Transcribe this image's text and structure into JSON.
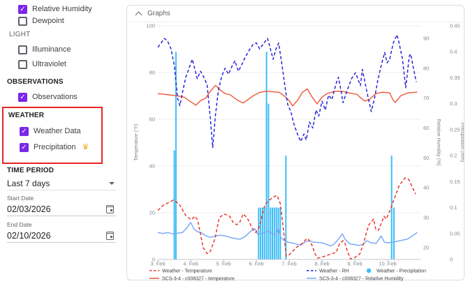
{
  "icons": {
    "check_glyph": "✓",
    "crown_glyph": "♛"
  },
  "sidebar": {
    "sensor_items": [
      {
        "label": "Relative Humidity",
        "checked": true
      },
      {
        "label": "Dewpoint",
        "checked": false
      }
    ],
    "light_heading": "LIGHT",
    "light_items": [
      {
        "label": "Illuminance",
        "checked": false
      },
      {
        "label": "Ultraviolet",
        "checked": false
      }
    ],
    "observations_heading": "OBSERVATIONS",
    "observations_items": [
      {
        "label": "Observations",
        "checked": true
      }
    ],
    "weather_heading": "WEATHER",
    "weather_items": [
      {
        "label": "Weather Data",
        "checked": true
      },
      {
        "label": "Precipitation",
        "checked": true,
        "badge": "crown"
      }
    ],
    "time_period_heading": "TIME PERIOD",
    "time_period_value": "Last 7 days",
    "start_date_label": "Start Date",
    "start_date_value": "02/03/2026",
    "end_date_label": "End Date",
    "end_date_value": "02/10/2026",
    "highlight_color": "#e8251f",
    "checkbox_color": "#7b27e8"
  },
  "graphs_panel": {
    "title": "Graphs"
  },
  "chart_data": {
    "type": "line",
    "x_axis": {
      "domain_days": [
        3,
        11
      ],
      "tick_days": [
        3,
        4,
        5,
        6,
        7,
        8,
        9,
        10
      ],
      "tick_labels": [
        "3. Feb",
        "4. Feb",
        "5. Feb",
        "6. Feb",
        "7. Feb",
        "8. Feb",
        "9. Feb",
        "10. Feb"
      ]
    },
    "y_axes": [
      {
        "id": "temperature",
        "label": "Temperature (°F)",
        "side": "left",
        "domain": [
          0,
          100
        ],
        "ticks": [
          0,
          20,
          40,
          60,
          80,
          100
        ],
        "grid": true
      },
      {
        "id": "humidity",
        "label": "Relative Humidity (%)",
        "side": "right",
        "domain": [
          16,
          94.2
        ],
        "ticks": [
          20,
          30,
          40,
          50,
          60,
          70,
          80,
          90
        ],
        "grid": false
      },
      {
        "id": "precipitation",
        "label": "Precipitation (mm)",
        "side": "right-outer",
        "domain": [
          0,
          0.45
        ],
        "ticks": [
          0,
          0.05,
          0.1,
          0.15,
          0.2,
          0.25,
          0.3,
          0.35,
          0.4,
          0.45
        ],
        "grid": false
      }
    ],
    "series": [
      {
        "name": "Weather - Precipitation",
        "axis": "precipitation",
        "style": "bars",
        "color": "#3dbdf5",
        "points": [
          [
            3.5,
            0.21
          ],
          [
            3.55,
            0.4
          ],
          [
            6.07,
            0.1
          ],
          [
            6.13,
            0.1
          ],
          [
            6.19,
            0.1
          ],
          [
            6.25,
            0.1
          ],
          [
            6.31,
            0.4
          ],
          [
            6.37,
            0.3
          ],
          [
            6.43,
            0.1
          ],
          [
            6.49,
            0.1
          ],
          [
            6.55,
            0.1
          ],
          [
            6.61,
            0.1
          ],
          [
            6.67,
            0.1
          ],
          [
            6.73,
            0.1
          ],
          [
            6.9,
            0.2
          ],
          [
            10.12,
            0.2
          ],
          [
            10.19,
            0.1
          ]
        ]
      },
      {
        "name": "SCS-3-4 - c008327 - Relative Humidity",
        "axis": "humidity",
        "style": "solid",
        "color": "#7baaf7",
        "points": [
          [
            3.0,
            25
          ],
          [
            3.15,
            24.7
          ],
          [
            3.3,
            25
          ],
          [
            3.45,
            24.6
          ],
          [
            3.6,
            24.8
          ],
          [
            3.75,
            25
          ],
          [
            3.9,
            26.8
          ],
          [
            4.0,
            28.4
          ],
          [
            4.1,
            26.2
          ],
          [
            4.2,
            25.3
          ],
          [
            4.3,
            25.1
          ],
          [
            4.45,
            24
          ],
          [
            4.6,
            23.4
          ],
          [
            4.75,
            23.9
          ],
          [
            4.9,
            24.1
          ],
          [
            5.05,
            23.9
          ],
          [
            5.2,
            23.4
          ],
          [
            5.35,
            23
          ],
          [
            5.5,
            22.8
          ],
          [
            5.65,
            23.6
          ],
          [
            5.8,
            25.2
          ],
          [
            5.95,
            26.3
          ],
          [
            6.05,
            24.4
          ],
          [
            6.2,
            24.8
          ],
          [
            6.35,
            25.5
          ],
          [
            6.5,
            24.6
          ],
          [
            6.6,
            24.2
          ],
          [
            6.67,
            26.6
          ],
          [
            6.75,
            23.2
          ],
          [
            6.9,
            22
          ],
          [
            7.05,
            21.6
          ],
          [
            7.2,
            21.2
          ],
          [
            7.35,
            20.8
          ],
          [
            7.5,
            22
          ],
          [
            7.6,
            22.3
          ],
          [
            7.75,
            21.8
          ],
          [
            7.9,
            21.7
          ],
          [
            8.0,
            21.6
          ],
          [
            8.15,
            21
          ],
          [
            8.26,
            20.5
          ],
          [
            8.36,
            21.1
          ],
          [
            8.5,
            22.8
          ],
          [
            8.62,
            24.6
          ],
          [
            8.7,
            22.8
          ],
          [
            8.85,
            21.2
          ],
          [
            9.0,
            21
          ],
          [
            9.1,
            20.7
          ],
          [
            9.25,
            21
          ],
          [
            9.36,
            22.3
          ],
          [
            9.5,
            21.6
          ],
          [
            9.65,
            21.4
          ],
          [
            9.8,
            23.9
          ],
          [
            9.9,
            21.8
          ],
          [
            10.0,
            21.6
          ],
          [
            10.15,
            21.8
          ],
          [
            10.3,
            22.1
          ],
          [
            10.45,
            22.5
          ],
          [
            10.6,
            22.8
          ],
          [
            10.75,
            23.9
          ],
          [
            10.9,
            25
          ]
        ]
      },
      {
        "name": "SCS-3-4 - c008327 - temperature",
        "axis": "temperature",
        "style": "solid",
        "color": "#f0603f",
        "points": [
          [
            3.0,
            71
          ],
          [
            3.3,
            70.5
          ],
          [
            3.6,
            70
          ],
          [
            3.8,
            69.5
          ],
          [
            4.0,
            67.5
          ],
          [
            4.16,
            66
          ],
          [
            4.3,
            68
          ],
          [
            4.45,
            69
          ],
          [
            4.6,
            72
          ],
          [
            4.76,
            74.5
          ],
          [
            4.9,
            72.5
          ],
          [
            5.05,
            71
          ],
          [
            5.2,
            70.5
          ],
          [
            5.44,
            68
          ],
          [
            5.6,
            67
          ],
          [
            5.75,
            68.5
          ],
          [
            5.9,
            70
          ],
          [
            6.1,
            71.5
          ],
          [
            6.3,
            72
          ],
          [
            6.5,
            71.8
          ],
          [
            6.7,
            71.5
          ],
          [
            6.85,
            70
          ],
          [
            7.0,
            68
          ],
          [
            7.1,
            65.7
          ],
          [
            7.25,
            68
          ],
          [
            7.4,
            71.5
          ],
          [
            7.55,
            73
          ],
          [
            7.7,
            69.5
          ],
          [
            7.85,
            66.6
          ],
          [
            8.0,
            69.5
          ],
          [
            8.15,
            71
          ],
          [
            8.35,
            71.8
          ],
          [
            8.5,
            72
          ],
          [
            8.64,
            71.9
          ],
          [
            8.8,
            71.3
          ],
          [
            9.06,
            70.7
          ],
          [
            9.17,
            69.3
          ],
          [
            9.3,
            67.8
          ],
          [
            9.45,
            68.5
          ],
          [
            9.64,
            71
          ],
          [
            9.85,
            71.6
          ],
          [
            10.06,
            71.3
          ],
          [
            10.17,
            68.1
          ],
          [
            10.23,
            67.2
          ],
          [
            10.4,
            70.1
          ],
          [
            10.62,
            71.3
          ],
          [
            10.9,
            71.6
          ]
        ]
      },
      {
        "name": "Weather - Temperature",
        "axis": "temperature",
        "style": "dashed",
        "color": "#e8392e",
        "points": [
          [
            3.0,
            21
          ],
          [
            3.17,
            23.3
          ],
          [
            3.36,
            24.5
          ],
          [
            3.47,
            25.4
          ],
          [
            3.64,
            23.9
          ],
          [
            3.85,
            18.8
          ],
          [
            4.02,
            17
          ],
          [
            4.13,
            18.5
          ],
          [
            4.21,
            17
          ],
          [
            4.38,
            5.1
          ],
          [
            4.5,
            2.5
          ],
          [
            4.6,
            3.5
          ],
          [
            4.74,
            9
          ],
          [
            4.87,
            17.9
          ],
          [
            5.02,
            19.4
          ],
          [
            5.17,
            18.8
          ],
          [
            5.3,
            15.8
          ],
          [
            5.4,
            14.9
          ],
          [
            5.49,
            15.8
          ],
          [
            5.6,
            19.5
          ],
          [
            5.72,
            17.9
          ],
          [
            5.87,
            13.4
          ],
          [
            5.98,
            11.5
          ],
          [
            6.09,
            14
          ],
          [
            6.26,
            23.4
          ],
          [
            6.4,
            25.5
          ],
          [
            6.54,
            26.9
          ],
          [
            6.63,
            27.4
          ],
          [
            6.73,
            23.9
          ],
          [
            6.8,
            16
          ],
          [
            6.91,
            1.5
          ],
          [
            7.0,
            2
          ],
          [
            7.13,
            3.9
          ],
          [
            7.24,
            5.4
          ],
          [
            7.4,
            6.9
          ],
          [
            7.5,
            8.5
          ],
          [
            7.57,
            9
          ],
          [
            7.68,
            6.6
          ],
          [
            7.79,
            2.4
          ],
          [
            7.87,
            0.6
          ],
          [
            8.0,
            1
          ],
          [
            8.2,
            2
          ],
          [
            8.43,
            3
          ],
          [
            8.53,
            6.6
          ],
          [
            8.64,
            8.1
          ],
          [
            8.7,
            6.9
          ],
          [
            8.77,
            3.6
          ],
          [
            8.87,
            0.2
          ],
          [
            9.0,
            0.8
          ],
          [
            9.15,
            2.4
          ],
          [
            9.26,
            6.6
          ],
          [
            9.36,
            11.9
          ],
          [
            9.43,
            14.9
          ],
          [
            9.57,
            17.3
          ],
          [
            9.64,
            12.8
          ],
          [
            9.72,
            12.5
          ],
          [
            9.83,
            16.4
          ],
          [
            9.89,
            18.5
          ],
          [
            9.96,
            17.3
          ],
          [
            10.11,
            22.4
          ],
          [
            10.17,
            24.8
          ],
          [
            10.28,
            29
          ],
          [
            10.36,
            31.9
          ],
          [
            10.53,
            34.9
          ],
          [
            10.64,
            34.3
          ],
          [
            10.74,
            31.3
          ],
          [
            10.85,
            28
          ]
        ]
      },
      {
        "name": "Weather - RH",
        "axis": "humidity",
        "style": "dashed",
        "color": "#2626d8",
        "points": [
          [
            3.0,
            87
          ],
          [
            3.1,
            88.5
          ],
          [
            3.2,
            90
          ],
          [
            3.3,
            89
          ],
          [
            3.4,
            86.5
          ],
          [
            3.5,
            81
          ],
          [
            3.6,
            70
          ],
          [
            3.67,
            67.5
          ],
          [
            3.75,
            72
          ],
          [
            3.85,
            77
          ],
          [
            3.95,
            80
          ],
          [
            4.05,
            83
          ],
          [
            4.12,
            80
          ],
          [
            4.2,
            76.5
          ],
          [
            4.3,
            79
          ],
          [
            4.4,
            77
          ],
          [
            4.5,
            74.5
          ],
          [
            4.6,
            63
          ],
          [
            4.67,
            53.5
          ],
          [
            4.75,
            64
          ],
          [
            4.85,
            73
          ],
          [
            4.95,
            77.5
          ],
          [
            5.05,
            80
          ],
          [
            5.15,
            78
          ],
          [
            5.25,
            80.5
          ],
          [
            5.35,
            82.5
          ],
          [
            5.45,
            79
          ],
          [
            5.55,
            81
          ],
          [
            5.65,
            83.5
          ],
          [
            5.78,
            86
          ],
          [
            5.9,
            88
          ],
          [
            6.0,
            88.5
          ],
          [
            6.1,
            86.5
          ],
          [
            6.2,
            88
          ],
          [
            6.34,
            90
          ],
          [
            6.45,
            85.5
          ],
          [
            6.51,
            83
          ],
          [
            6.6,
            86.5
          ],
          [
            6.68,
            88.4
          ],
          [
            6.79,
            80.5
          ],
          [
            6.87,
            74
          ],
          [
            6.95,
            68
          ],
          [
            7.05,
            65.5
          ],
          [
            7.15,
            61
          ],
          [
            7.25,
            58
          ],
          [
            7.35,
            55.5
          ],
          [
            7.45,
            58
          ],
          [
            7.52,
            56
          ],
          [
            7.62,
            62
          ],
          [
            7.72,
            60
          ],
          [
            7.82,
            66
          ],
          [
            7.9,
            64
          ],
          [
            8.0,
            69
          ],
          [
            8.1,
            66
          ],
          [
            8.2,
            71
          ],
          [
            8.3,
            69.5
          ],
          [
            8.42,
            74.5
          ],
          [
            8.5,
            77
          ],
          [
            8.57,
            73
          ],
          [
            8.64,
            68.5
          ],
          [
            8.78,
            73
          ],
          [
            8.9,
            76.5
          ],
          [
            9.02,
            78.5
          ],
          [
            9.17,
            74.2
          ],
          [
            9.23,
            79.6
          ],
          [
            9.38,
            71.4
          ],
          [
            9.5,
            65.5
          ],
          [
            9.6,
            70
          ],
          [
            9.7,
            76
          ],
          [
            9.81,
            81.3
          ],
          [
            9.91,
            85.3
          ],
          [
            9.98,
            81.8
          ],
          [
            10.06,
            83
          ],
          [
            10.17,
            88.4
          ],
          [
            10.28,
            91.2
          ],
          [
            10.34,
            88.8
          ],
          [
            10.45,
            83.2
          ],
          [
            10.55,
            73.5
          ],
          [
            10.66,
            84.1
          ],
          [
            10.7,
            84.8
          ],
          [
            10.77,
            80.8
          ],
          [
            10.87,
            75.4
          ]
        ]
      }
    ],
    "legend": {
      "columns": [
        [
          3,
          2
        ],
        [
          4,
          1
        ],
        [
          0
        ]
      ]
    },
    "grid_color": "#ededed",
    "axis_line_color": "#c3c7cc",
    "tick_text_color": "#80868b",
    "legend_text_color": "#3c4043"
  }
}
